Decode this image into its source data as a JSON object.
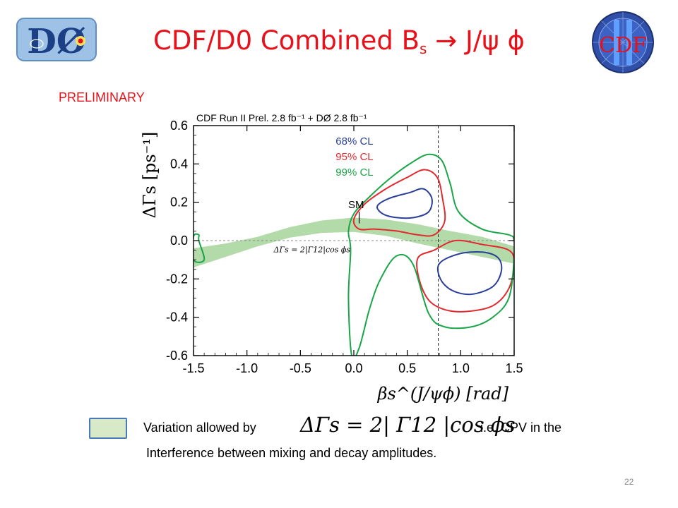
{
  "slide": {
    "title_main": "CDF/D0 Combined B",
    "title_sub": "s",
    "title_tail": " → J/ψ ϕ",
    "preliminary": "PRELIMINARY",
    "caption_line1_a": "Variation allowed by",
    "caption_formula": "ΔΓs = 2| Γ12 |cos ϕs",
    "caption_line1_b": "i.e. CPV in the",
    "caption_line2": "Interference  between mixing and decay amplitudes.",
    "page_number": "22",
    "band_swatch_color": "#d7e9c6",
    "accent_color": "#e8111a"
  },
  "logos": {
    "left": {
      "text": "DØ",
      "icon": "d0-experiment-logo"
    },
    "right": {
      "text": "CDF",
      "icon": "cdf-experiment-logo"
    }
  },
  "chart_data": {
    "type": "contour",
    "header": "CDF  Run II Prel. 2.8 fb⁻¹ + DØ  2.8 fb⁻¹",
    "xlabel": "βs^(J/ψϕ) [rad]",
    "ylabel": "ΔΓs [ps⁻¹]",
    "xlim": [
      -1.5,
      1.5
    ],
    "ylim": [
      -0.6,
      0.6
    ],
    "xticks": [
      "-1.5",
      "-1.0",
      "-0.5",
      "0.0",
      "0.5",
      "1.0",
      "1.5"
    ],
    "yticks": [
      "0.6",
      "0.4",
      "0.2",
      "0.0",
      "-0.2",
      "-0.4",
      "-0.6"
    ],
    "sm_label": "SM",
    "sm_point": [
      0.0,
      0.1
    ],
    "band_label": "ΔΓs = 2|Γ12|cos ϕs",
    "dashed_vline_x": 0.79,
    "dashed_hline_y": 0.0,
    "legend": [
      {
        "name": "68% CL",
        "color": "#2a3f9a"
      },
      {
        "name": "95% CL",
        "color": "#e02a2f"
      },
      {
        "name": "99% CL",
        "color": "#1aa548"
      }
    ],
    "band": {
      "color": "#a6d49a",
      "upper": [
        [
          -1.5,
          -0.04
        ],
        [
          -1.2,
          -0.015
        ],
        [
          -0.9,
          0.02
        ],
        [
          -0.6,
          0.07
        ],
        [
          -0.3,
          0.105
        ],
        [
          0.0,
          0.12
        ],
        [
          0.3,
          0.11
        ],
        [
          0.6,
          0.085
        ],
        [
          0.9,
          0.05
        ],
        [
          1.2,
          0.02
        ],
        [
          1.5,
          -0.03
        ]
      ],
      "lower": [
        [
          1.5,
          -0.12
        ],
        [
          1.2,
          -0.085
        ],
        [
          0.9,
          -0.05
        ],
        [
          0.6,
          -0.015
        ],
        [
          0.3,
          0.025
        ],
        [
          0.0,
          0.045
        ],
        [
          -0.3,
          0.04
        ],
        [
          -0.6,
          0.015
        ],
        [
          -0.9,
          -0.03
        ],
        [
          -1.2,
          -0.085
        ],
        [
          -1.5,
          -0.14
        ]
      ]
    },
    "contours": [
      {
        "level": "68% CL",
        "color": "#2a3f9a",
        "points": [
          [
            0.22,
            0.18
          ],
          [
            0.33,
            0.22
          ],
          [
            0.52,
            0.25
          ],
          [
            0.65,
            0.27
          ],
          [
            0.73,
            0.22
          ],
          [
            0.7,
            0.15
          ],
          [
            0.56,
            0.12
          ],
          [
            0.4,
            0.12
          ],
          [
            0.27,
            0.14
          ]
        ]
      },
      {
        "level": "68% CL",
        "color": "#2a3f9a",
        "points": [
          [
            0.8,
            -0.12
          ],
          [
            0.98,
            -0.07
          ],
          [
            1.2,
            -0.06
          ],
          [
            1.35,
            -0.09
          ],
          [
            1.38,
            -0.16
          ],
          [
            1.3,
            -0.24
          ],
          [
            1.1,
            -0.28
          ],
          [
            0.92,
            -0.26
          ],
          [
            0.81,
            -0.2
          ]
        ]
      },
      {
        "level": "95% CL",
        "color": "#e02a2f",
        "points": [
          [
            0.0,
            0.11
          ],
          [
            0.1,
            0.19
          ],
          [
            0.3,
            0.27
          ],
          [
            0.5,
            0.33
          ],
          [
            0.66,
            0.37
          ],
          [
            0.78,
            0.33
          ],
          [
            0.83,
            0.22
          ],
          [
            0.85,
            0.1
          ],
          [
            0.75,
            0.03
          ],
          [
            0.6,
            0.03
          ],
          [
            0.4,
            0.05
          ],
          [
            0.2,
            0.06
          ],
          [
            0.05,
            0.06
          ]
        ]
      },
      {
        "level": "95% CL",
        "color": "#e02a2f",
        "points": [
          [
            0.6,
            -0.09
          ],
          [
            0.75,
            -0.05
          ],
          [
            0.95,
            0.0
          ],
          [
            1.2,
            -0.02
          ],
          [
            1.45,
            -0.05
          ],
          [
            1.5,
            -0.12
          ],
          [
            1.45,
            -0.25
          ],
          [
            1.3,
            -0.34
          ],
          [
            1.05,
            -0.37
          ],
          [
            0.85,
            -0.36
          ],
          [
            0.7,
            -0.31
          ],
          [
            0.61,
            -0.2
          ]
        ]
      },
      {
        "level": "99% CL",
        "color": "#1aa548",
        "points": [
          [
            -1.45,
            0.0
          ],
          [
            -1.4,
            -0.1
          ],
          [
            -1.5,
            -0.1
          ],
          [
            -1.5,
            0.02
          ],
          [
            -1.45,
            0.03
          ]
        ]
      },
      {
        "level": "99% CL",
        "color": "#1aa548",
        "points": [
          [
            -0.05,
            0.05
          ],
          [
            0.0,
            0.14
          ],
          [
            0.15,
            0.23
          ],
          [
            0.35,
            0.33
          ],
          [
            0.55,
            0.41
          ],
          [
            0.7,
            0.45
          ],
          [
            0.82,
            0.42
          ],
          [
            0.9,
            0.3
          ],
          [
            0.98,
            0.15
          ],
          [
            1.2,
            0.06
          ],
          [
            1.45,
            0.03
          ],
          [
            1.5,
            0.0
          ],
          [
            1.5,
            -0.1
          ],
          [
            1.45,
            -0.3
          ],
          [
            1.3,
            -0.4
          ],
          [
            1.1,
            -0.45
          ],
          [
            0.85,
            -0.45
          ],
          [
            0.7,
            -0.38
          ],
          [
            0.55,
            -0.12
          ],
          [
            0.4,
            -0.08
          ],
          [
            0.25,
            -0.2
          ],
          [
            0.15,
            -0.35
          ],
          [
            0.05,
            -0.56
          ],
          [
            -0.02,
            -0.6
          ],
          [
            -0.05,
            -0.3
          ],
          [
            -0.03,
            -0.05
          ]
        ]
      }
    ]
  }
}
